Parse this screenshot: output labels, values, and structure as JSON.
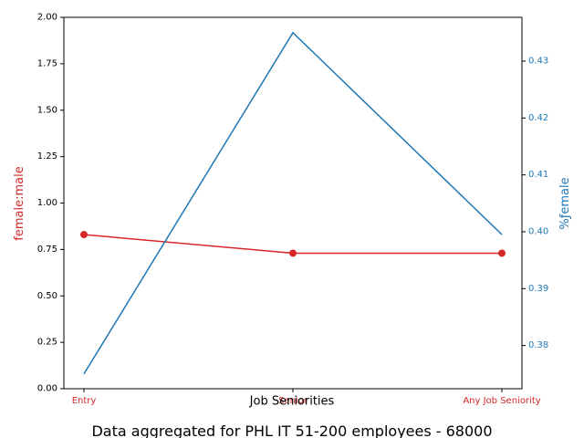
{
  "chart_data": {
    "type": "line",
    "categories": [
      "Entry",
      "Senior",
      "Any Job Seniority"
    ],
    "xlabel": "Job Seniorities",
    "caption": "Data aggregated for PHL IT 51-200 employees - 68000",
    "left_axis": {
      "label": "female:male",
      "color": "#d62728",
      "ylim": [
        0,
        2
      ],
      "ticks": [
        "0.00",
        "0.25",
        "0.50",
        "0.75",
        "1.00",
        "1.25",
        "1.50",
        "1.75",
        "2.00"
      ]
    },
    "right_axis": {
      "label": "%ƒemale",
      "color": "#1f77b4",
      "ylim": [
        0.3724,
        0.4377
      ],
      "ticks": [
        "0.38",
        "0.39",
        "0.40",
        "0.41",
        "0.42",
        "0.43"
      ]
    },
    "series": [
      {
        "axis": "left",
        "color": "#d62728",
        "marker": "circle",
        "values": [
          0.83,
          0.73,
          0.73
        ]
      },
      {
        "axis": "right",
        "color": "#1f77b4",
        "marker": "none",
        "values": [
          0.375,
          0.435,
          0.3995
        ]
      }
    ]
  }
}
